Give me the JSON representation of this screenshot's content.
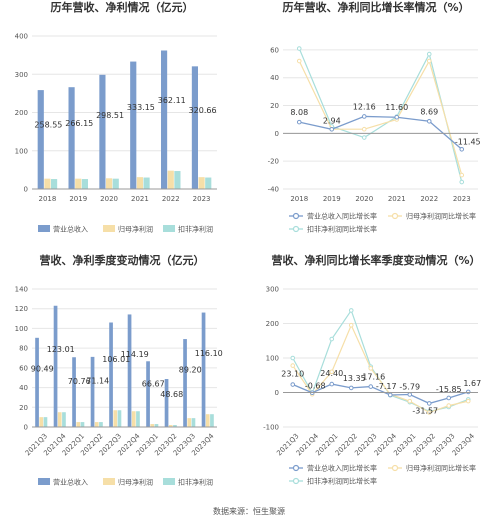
{
  "source": "数据来源：恒生聚源",
  "colors": {
    "revenue": "#7b9ccc",
    "net_profit": "#f6dfa8",
    "deducted_profit": "#a8dedb"
  },
  "chart_data": [
    {
      "id": "annual_values",
      "type": "bar",
      "title": "历年营收、净利情况（亿元）",
      "categories": [
        "2018",
        "2019",
        "2020",
        "2021",
        "2022",
        "2023"
      ],
      "series": [
        {
          "name": "营业总收入",
          "values": [
            258.55,
            266.15,
            298.51,
            333.15,
            362.11,
            320.66
          ]
        },
        {
          "name": "归母净利润",
          "values": [
            27,
            27,
            28,
            31,
            48,
            31
          ]
        },
        {
          "name": "扣非净利润",
          "values": [
            26,
            26,
            27,
            30,
            47,
            30
          ]
        }
      ],
      "data_labels": [
        "258.55",
        "266.15",
        "298.51",
        "333.15",
        "362.11",
        "320.66"
      ],
      "yticks": [
        "0",
        "100",
        "200",
        "300",
        "400"
      ],
      "ylim": [
        0,
        400
      ],
      "grid": true,
      "legend": "bottom"
    },
    {
      "id": "annual_growth",
      "type": "line",
      "title": "历年营收、净利同比增长率情况（%）",
      "categories": [
        "2018",
        "2019",
        "2020",
        "2021",
        "2022",
        "2023"
      ],
      "series": [
        {
          "name": "营业总收入同比增长率",
          "values": [
            8.08,
            2.94,
            12.16,
            11.6,
            8.69,
            -11.45
          ]
        },
        {
          "name": "归母净利润同比增长率",
          "values": [
            52,
            3,
            3,
            10,
            52,
            -30
          ]
        },
        {
          "name": "扣非净利润同比增长率",
          "values": [
            61,
            5,
            -3,
            12,
            57,
            -35
          ]
        }
      ],
      "data_labels": [
        "8.08",
        "2.94",
        "12.16",
        "11.60",
        "8.69",
        "-11.45"
      ],
      "yticks": [
        "-40",
        "-20",
        "0",
        "20",
        "40",
        "60"
      ],
      "ylim": [
        -40,
        70
      ],
      "grid": true,
      "legend": "bottom"
    },
    {
      "id": "quarterly_values",
      "type": "bar",
      "title": "营收、净利季度变动情况（亿元）",
      "categories": [
        "2021Q3",
        "2021Q4",
        "2022Q1",
        "2022Q2",
        "2022Q3",
        "2022Q4",
        "2023Q1",
        "2023Q2",
        "2023Q3",
        "2023Q4"
      ],
      "series": [
        {
          "name": "营业总收入",
          "values": [
            90.49,
            123.01,
            70.76,
            71.14,
            106.01,
            114.19,
            66.67,
            48.68,
            89.2,
            116.1
          ]
        },
        {
          "name": "归母净利润",
          "values": [
            10,
            15,
            5,
            5,
            17,
            16,
            3,
            2,
            9,
            13
          ]
        },
        {
          "name": "扣非净利润",
          "values": [
            10,
            15,
            5,
            5,
            17,
            16,
            3,
            2,
            9,
            13
          ]
        }
      ],
      "data_labels": [
        "90.49",
        "123.01",
        "70.76",
        "71.14",
        "106.01",
        "114.19",
        "66.67",
        "48.68",
        "89.20",
        "116.10"
      ],
      "yticks": [
        "0",
        "20",
        "40",
        "60",
        "80",
        "100",
        "120",
        "140"
      ],
      "ylim": [
        0,
        140
      ],
      "grid": true,
      "legend": "bottom"
    },
    {
      "id": "quarterly_growth",
      "type": "line",
      "title": "营收、净利同比增长率季度变动情况（%）",
      "categories": [
        "2021Q3",
        "2021Q4",
        "2022Q1",
        "2022Q2",
        "2022Q3",
        "2022Q4",
        "2023Q1",
        "2023Q2",
        "2023Q3",
        "2023Q4"
      ],
      "series": [
        {
          "name": "营业总收入同比增长率",
          "values": [
            23.1,
            -0.68,
            24.4,
            13.35,
            17.16,
            -7.17,
            -5.79,
            -31.57,
            -15.85,
            1.67
          ]
        },
        {
          "name": "归母净利润同比增长率",
          "values": [
            78,
            -5,
            60,
            195,
            70,
            -5,
            -25,
            -58,
            -38,
            -25
          ]
        },
        {
          "name": "扣非净利润同比增长率",
          "values": [
            100,
            -2,
            155,
            238,
            75,
            -8,
            -28,
            -55,
            -42,
            -20
          ]
        }
      ],
      "data_labels": [
        "23.10",
        "-0.68",
        "24.40",
        "13.35",
        "17.16",
        "-7.17",
        "-5.79",
        "-31.57",
        "-15.85",
        "1.67"
      ],
      "yticks": [
        "-100",
        "0",
        "100",
        "200",
        "300"
      ],
      "ylim": [
        -100,
        300
      ],
      "grid": true,
      "legend": "bottom"
    }
  ]
}
